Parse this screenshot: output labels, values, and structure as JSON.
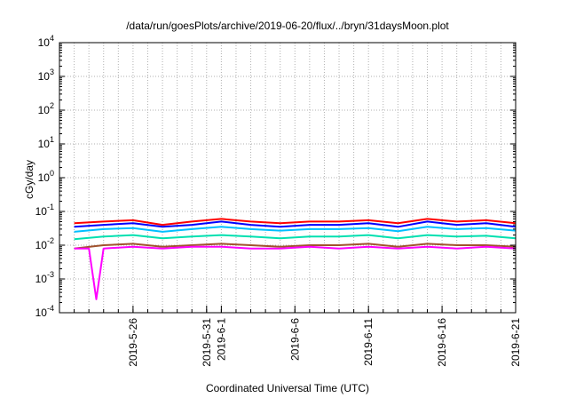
{
  "chart_data": {
    "type": "line",
    "title": "/data/run/goesPlots/archive/2019-06-20/flux/../bryn/31daysMoon.plot",
    "xlabel": "Coordinated Universal Time (UTC)",
    "ylabel": "cGy/day",
    "yscale": "log",
    "ylim": [
      0.0001,
      10000
    ],
    "xlim": [
      "2019-05-21",
      "2019-06-21"
    ],
    "grid": true,
    "legend": "none",
    "y_ticks": [
      {
        "base": "10",
        "exp": "-4",
        "value": 0.0001
      },
      {
        "base": "10",
        "exp": "-3",
        "value": 0.001
      },
      {
        "base": "10",
        "exp": "-2",
        "value": 0.01
      },
      {
        "base": "10",
        "exp": "-1",
        "value": 0.1
      },
      {
        "base": "10",
        "exp": "0",
        "value": 1
      },
      {
        "base": "10",
        "exp": "1",
        "value": 10
      },
      {
        "base": "10",
        "exp": "2",
        "value": 100
      },
      {
        "base": "10",
        "exp": "3",
        "value": 1000
      },
      {
        "base": "10",
        "exp": "4",
        "value": 10000
      }
    ],
    "x_ticks": [
      "2019-5-26",
      "2019-5-31",
      "2019-6-1",
      "2019-6-6",
      "2019-6-11",
      "2019-6-16",
      "2019-6-21"
    ],
    "x_tick_dates": [
      "2019-05-26",
      "2019-05-31",
      "2019-06-01",
      "2019-06-06",
      "2019-06-11",
      "2019-06-16",
      "2019-06-21"
    ],
    "series": [
      {
        "color": "#ff0000",
        "x": [
          "2019-05-22",
          "2019-05-24",
          "2019-05-26",
          "2019-05-28",
          "2019-05-30",
          "2019-06-01",
          "2019-06-03",
          "2019-06-05",
          "2019-06-07",
          "2019-06-09",
          "2019-06-11",
          "2019-06-13",
          "2019-06-15",
          "2019-06-17",
          "2019-06-19",
          "2019-06-21"
        ],
        "y": [
          0.045,
          0.05,
          0.055,
          0.04,
          0.05,
          0.06,
          0.05,
          0.045,
          0.05,
          0.05,
          0.055,
          0.045,
          0.06,
          0.05,
          0.055,
          0.045
        ]
      },
      {
        "color": "#0000ff",
        "x": [
          "2019-05-22",
          "2019-05-24",
          "2019-05-26",
          "2019-05-28",
          "2019-05-30",
          "2019-06-01",
          "2019-06-03",
          "2019-06-05",
          "2019-06-07",
          "2019-06-09",
          "2019-06-11",
          "2019-06-13",
          "2019-06-15",
          "2019-06-17",
          "2019-06-19",
          "2019-06-21"
        ],
        "y": [
          0.035,
          0.04,
          0.045,
          0.035,
          0.04,
          0.05,
          0.04,
          0.035,
          0.04,
          0.04,
          0.045,
          0.035,
          0.05,
          0.04,
          0.045,
          0.035
        ]
      },
      {
        "color": "#00bfff",
        "x": [
          "2019-05-22",
          "2019-05-24",
          "2019-05-26",
          "2019-05-28",
          "2019-05-30",
          "2019-06-01",
          "2019-06-03",
          "2019-06-05",
          "2019-06-07",
          "2019-06-09",
          "2019-06-11",
          "2019-06-13",
          "2019-06-15",
          "2019-06-17",
          "2019-06-19",
          "2019-06-21"
        ],
        "y": [
          0.025,
          0.03,
          0.032,
          0.025,
          0.03,
          0.035,
          0.03,
          0.027,
          0.03,
          0.03,
          0.032,
          0.026,
          0.035,
          0.03,
          0.032,
          0.027
        ]
      },
      {
        "color": "#00e0b0",
        "x": [
          "2019-05-22",
          "2019-05-24",
          "2019-05-26",
          "2019-05-28",
          "2019-05-30",
          "2019-06-01",
          "2019-06-03",
          "2019-06-05",
          "2019-06-07",
          "2019-06-09",
          "2019-06-11",
          "2019-06-13",
          "2019-06-15",
          "2019-06-17",
          "2019-06-19",
          "2019-06-21"
        ],
        "y": [
          0.015,
          0.018,
          0.02,
          0.016,
          0.018,
          0.02,
          0.018,
          0.016,
          0.018,
          0.018,
          0.02,
          0.016,
          0.02,
          0.018,
          0.019,
          0.016
        ]
      },
      {
        "color": "#a0522d",
        "x": [
          "2019-05-22",
          "2019-05-24",
          "2019-05-26",
          "2019-05-28",
          "2019-05-30",
          "2019-06-01",
          "2019-06-03",
          "2019-06-05",
          "2019-06-07",
          "2019-06-09",
          "2019-06-11",
          "2019-06-13",
          "2019-06-15",
          "2019-06-17",
          "2019-06-19",
          "2019-06-21"
        ],
        "y": [
          0.008,
          0.01,
          0.011,
          0.009,
          0.01,
          0.011,
          0.01,
          0.009,
          0.01,
          0.01,
          0.011,
          0.009,
          0.011,
          0.01,
          0.01,
          0.009
        ]
      },
      {
        "color": "#ff00ff",
        "x": [
          "2019-05-22",
          "2019-05-23",
          "2019-05-23T12:00",
          "2019-05-24",
          "2019-05-26",
          "2019-05-28",
          "2019-05-30",
          "2019-06-01",
          "2019-06-03",
          "2019-06-05",
          "2019-06-07",
          "2019-06-09",
          "2019-06-11",
          "2019-06-13",
          "2019-06-15",
          "2019-06-17",
          "2019-06-19",
          "2019-06-21"
        ],
        "y": [
          0.008,
          0.008,
          0.00025,
          0.008,
          0.009,
          0.008,
          0.009,
          0.009,
          0.008,
          0.008,
          0.009,
          0.008,
          0.009,
          0.008,
          0.009,
          0.008,
          0.009,
          0.008
        ]
      }
    ]
  }
}
